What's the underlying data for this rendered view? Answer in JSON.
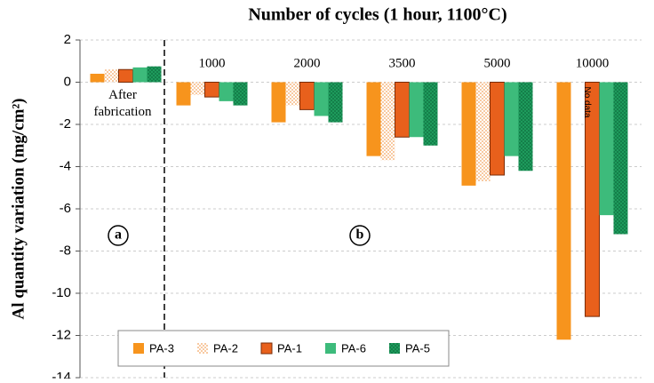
{
  "chart_data": {
    "type": "bar",
    "title": "Number of cycles (1 hour, 1100°C)",
    "y_label": "Al quantity variation (mg/cm²)",
    "categories": [
      "After fabrication",
      "1000",
      "2000",
      "3500",
      "5000",
      "10000"
    ],
    "series": [
      {
        "name": "PA-3",
        "color": "#f7941d",
        "pattern": "solid",
        "values": [
          0.4,
          -1.1,
          -1.9,
          -3.5,
          -4.9,
          -12.2
        ]
      },
      {
        "name": "PA-2",
        "color": "#f4a460",
        "pattern": "dots",
        "values": [
          0.6,
          -0.6,
          -1.1,
          -3.7,
          -4.7,
          null
        ]
      },
      {
        "name": "PA-1",
        "color": "#e8601c",
        "pattern": "solid",
        "values": [
          0.6,
          -0.7,
          -1.3,
          -2.6,
          -4.4,
          -11.1
        ]
      },
      {
        "name": "PA-6",
        "color": "#3dbb7b",
        "pattern": "solid",
        "values": [
          0.7,
          -0.9,
          -1.6,
          -2.6,
          -3.5,
          -6.3
        ]
      },
      {
        "name": "PA-5",
        "color": "#1e9b5c",
        "pattern": "dots",
        "values": [
          0.75,
          -1.1,
          -1.9,
          -3.0,
          -4.2,
          -7.2
        ]
      }
    ],
    "ylim": [
      -14,
      2
    ],
    "yticks": [
      -14,
      -12,
      -10,
      -8,
      -6,
      -4,
      -2,
      0,
      2
    ],
    "grid": true,
    "annotations": [
      "No data",
      "a",
      "b"
    ]
  }
}
